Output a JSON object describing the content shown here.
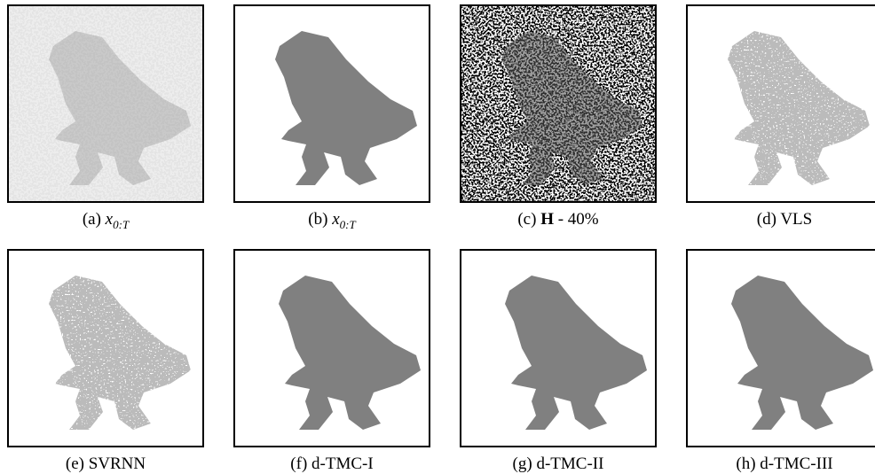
{
  "panels": [
    {
      "label": "(a)",
      "caption": "x",
      "subscript": "0:T"
    },
    {
      "label": "(b)",
      "caption": "x",
      "subscript": "0:T"
    },
    {
      "label": "(c)",
      "bold": "H",
      "caption": "- 40%"
    },
    {
      "label": "(d)",
      "caption": "VLS"
    },
    {
      "label": "(e)",
      "caption": "SVRNN"
    },
    {
      "label": "(f)",
      "caption": "d-TMC-I"
    },
    {
      "label": "(g)",
      "caption": "d-TMC-II"
    },
    {
      "label": "(h)",
      "caption": "d-TMC-III"
    }
  ]
}
